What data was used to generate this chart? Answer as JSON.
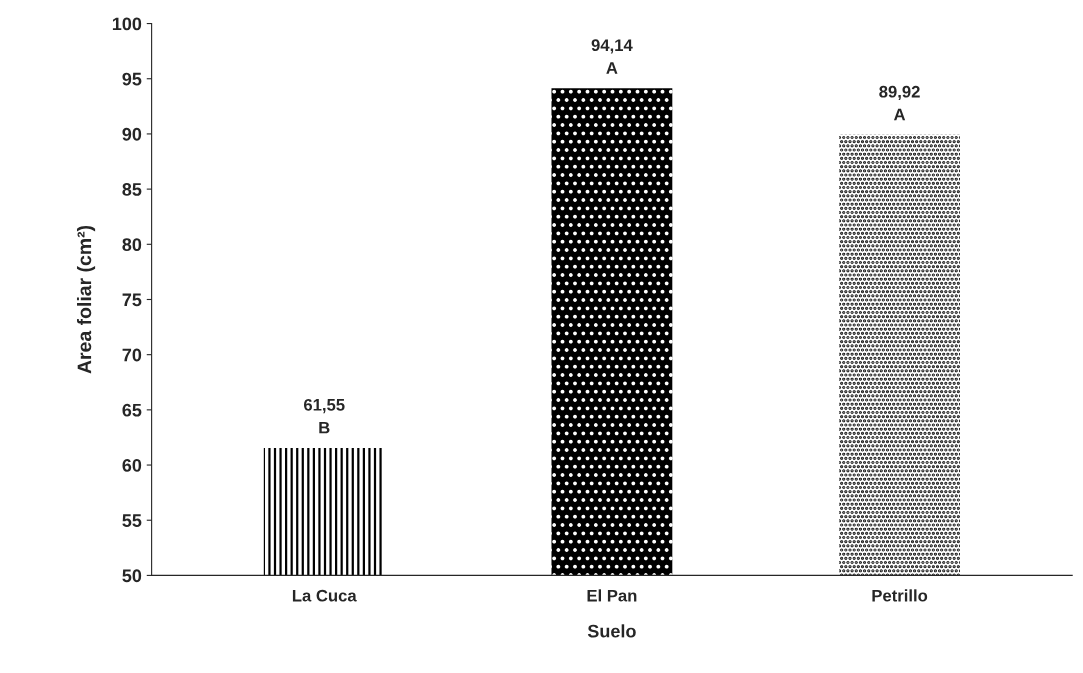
{
  "chart_data": {
    "type": "bar",
    "categories": [
      "La Cuca",
      "El Pan",
      "Petrillo"
    ],
    "values": [
      61.55,
      94.14,
      89.92
    ],
    "colors": [
      "#ffffff",
      "#000000",
      "#ffffff"
    ],
    "value_labels": [
      "61,55\nB",
      "94,14\nA",
      "89,92\nA"
    ],
    "xlabel": "Suelo",
    "ylabel": "Area foliar (cm²)",
    "ylim": [
      50,
      100
    ],
    "yticks": [
      50,
      55,
      60,
      65,
      70,
      75,
      80,
      85,
      90,
      95,
      100
    ],
    "grid": false,
    "legend": false
  }
}
